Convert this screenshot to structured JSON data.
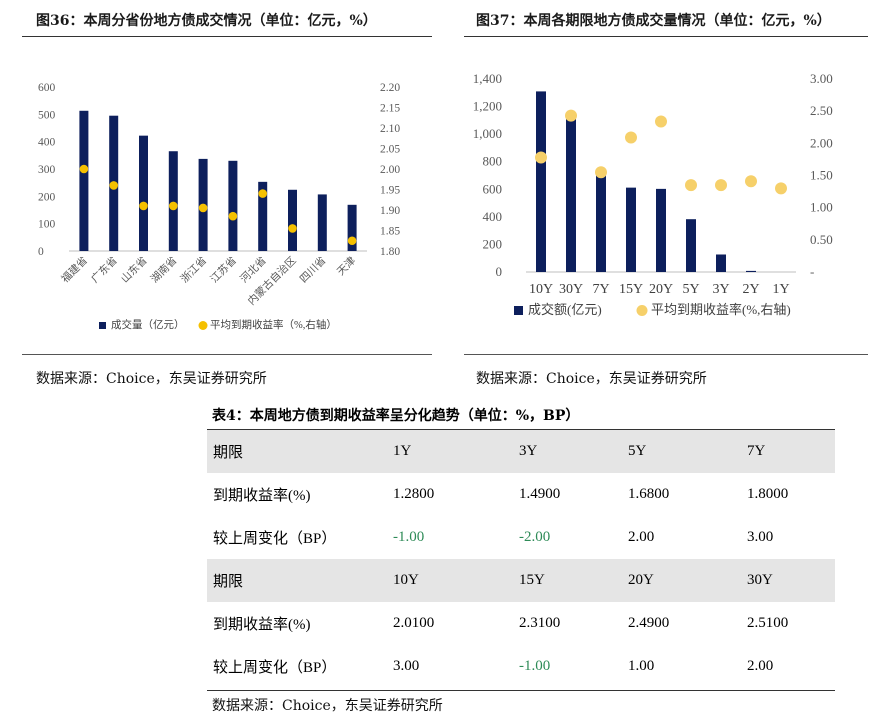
{
  "figure36": {
    "title": "图36：本周分省份地方债成交情况（单位：亿元，%）",
    "legend_volume": "成交量（亿元）",
    "legend_yield": "平均到期收益率（%,右轴）",
    "source": "数据来源：Choice，东吴证券研究所",
    "volume_color": "#0d1f5c",
    "yield_color": "#f5c000"
  },
  "figure37": {
    "title": "图37：本周各期限地方债成交量情况（单位：亿元，%）",
    "legend_volume": "成交额(亿元)",
    "legend_yield": "平均到期收益率(%,右轴)",
    "source": "数据来源：Choice，东吴证券研究所",
    "volume_color": "#0d1f5c",
    "yield_color": "#f6d06a"
  },
  "chart_data": [
    {
      "type": "bar",
      "title": "图36：本周分省份地方债成交情况（单位：亿元，%）",
      "categories": [
        "福建省",
        "广东省",
        "山东省",
        "湖南省",
        "浙江省",
        "江苏省",
        "河北省",
        "内蒙古自治区",
        "四川省",
        "天津"
      ],
      "series": [
        {
          "name": "成交量（亿元）",
          "axis": "left",
          "kind": "bar",
          "values": [
            513,
            495,
            422,
            365,
            337,
            330,
            253,
            224,
            207,
            169
          ]
        },
        {
          "name": "平均到期收益率（%,右轴）",
          "axis": "right",
          "kind": "scatter",
          "values": [
            2.0,
            1.96,
            1.91,
            1.91,
            1.905,
            1.885,
            1.94,
            1.855,
            null,
            1.825
          ]
        }
      ],
      "yticks_left": [
        "0",
        "100",
        "200",
        "300",
        "400",
        "500",
        "600"
      ],
      "yticks_right": [
        "1.80",
        "1.85",
        "1.90",
        "1.95",
        "2.00",
        "2.05",
        "2.10",
        "2.15",
        "2.20"
      ],
      "ylim_left": [
        0,
        600
      ],
      "ylim_right": [
        1.8,
        2.2
      ],
      "grid": false,
      "legend": "bottom"
    },
    {
      "type": "bar",
      "title": "图37：本周各期限地方债成交量情况（单位：亿元，%）",
      "categories": [
        "10Y",
        "30Y",
        "7Y",
        "15Y",
        "20Y",
        "5Y",
        "3Y",
        "2Y",
        "1Y"
      ],
      "series": [
        {
          "name": "成交额(亿元)",
          "axis": "left",
          "kind": "bar",
          "values": [
            1310,
            1140,
            700,
            612,
            603,
            383,
            127,
            8,
            0
          ]
        },
        {
          "name": "平均到期收益率(%,右轴)",
          "axis": "right",
          "kind": "scatter",
          "values": [
            1.78,
            2.43,
            1.55,
            2.09,
            2.34,
            1.35,
            1.35,
            1.41,
            1.3
          ]
        }
      ],
      "yticks_left": [
        "0",
        "200",
        "400",
        "600",
        "800",
        "1,000",
        "1,200",
        "1,400"
      ],
      "yticks_right": [
        "-",
        "0.50",
        "1.00",
        "1.50",
        "2.00",
        "2.50",
        "3.00"
      ],
      "ylim_left": [
        0,
        1400
      ],
      "ylim_right": [
        0,
        3.0
      ],
      "grid": false,
      "legend": "bottom"
    }
  ],
  "table4": {
    "title": "表4：本周地方债到期收益率呈分化趋势（单位：%，BP）",
    "rows": [
      {
        "header": true,
        "cells": [
          "期限",
          "1Y",
          "3Y",
          "5Y",
          "7Y"
        ]
      },
      {
        "header": false,
        "cells": [
          "到期收益率(%)",
          "1.2800",
          "1.4900",
          "1.6800",
          "1.8000"
        ]
      },
      {
        "header": false,
        "cells": [
          "较上周变化（BP）",
          "-1.00",
          "-2.00",
          "2.00",
          "3.00"
        ]
      },
      {
        "header": true,
        "cells": [
          "期限",
          "10Y",
          "15Y",
          "20Y",
          "30Y"
        ]
      },
      {
        "header": false,
        "cells": [
          "到期收益率(%)",
          "2.0100",
          "2.3100",
          "2.4900",
          "2.5100"
        ]
      },
      {
        "header": false,
        "cells": [
          "较上周变化（BP）",
          "3.00",
          "-1.00",
          "1.00",
          "2.00"
        ]
      }
    ],
    "source": "数据来源：Choice，东吴证券研究所"
  }
}
